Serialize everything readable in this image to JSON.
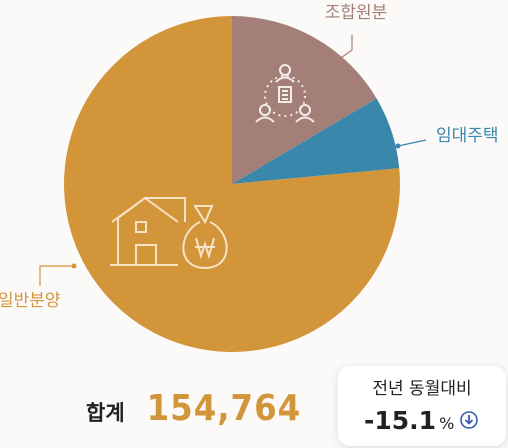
{
  "chart_data": {
    "type": "pie",
    "slices": [
      {
        "label": "조합원분",
        "value": 16.5,
        "color": "#a47f78"
      },
      {
        "label": "임대주택",
        "value": 7.0,
        "color": "#3a87ac"
      },
      {
        "label": "일반분양",
        "value": 76.5,
        "color": "#d3953a"
      }
    ],
    "icons": [
      "people-building-icon",
      "house-moneybag-icon"
    ]
  },
  "summary": {
    "total_label": "합계",
    "total_value": "154,764",
    "yoy_label": "전년 동월대비",
    "yoy_value": "-15.1",
    "yoy_unit": "%",
    "yoy_direction": "down-arrow-icon",
    "accent_color": "#d3953a",
    "down_color": "#3b5ba8"
  }
}
